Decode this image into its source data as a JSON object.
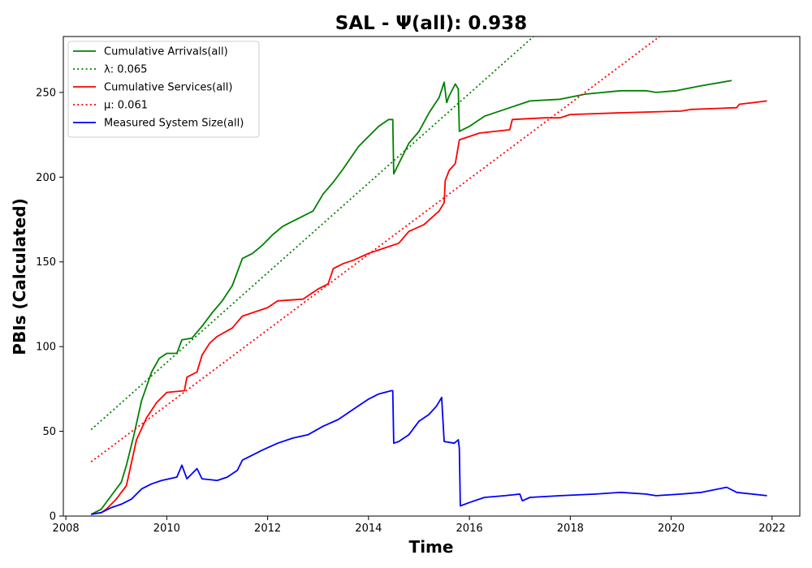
{
  "chart_data": {
    "type": "line",
    "title": "SAL -  Ψ(all): 0.938",
    "xlabel": "Time",
    "ylabel": "PBIs (Calculated)",
    "xlim": [
      2007.95,
      2022.55
    ],
    "ylim": [
      0,
      283
    ],
    "xticks": [
      2008,
      2010,
      2012,
      2014,
      2016,
      2018,
      2020,
      2022
    ],
    "yticks": [
      0,
      50,
      100,
      150,
      200,
      250
    ],
    "legend_position": "top-left",
    "series": [
      {
        "name": "Cumulative Arrivals(all)",
        "color": "#008000",
        "style": "solid",
        "points": [
          [
            2008.5,
            1
          ],
          [
            2008.7,
            4
          ],
          [
            2008.9,
            12
          ],
          [
            2009.1,
            20
          ],
          [
            2009.2,
            30
          ],
          [
            2009.35,
            48
          ],
          [
            2009.5,
            68
          ],
          [
            2009.7,
            85
          ],
          [
            2009.85,
            93
          ],
          [
            2010.0,
            96
          ],
          [
            2010.2,
            96
          ],
          [
            2010.3,
            104
          ],
          [
            2010.5,
            105
          ],
          [
            2010.7,
            112
          ],
          [
            2010.9,
            120
          ],
          [
            2011.1,
            127
          ],
          [
            2011.3,
            136
          ],
          [
            2011.5,
            152
          ],
          [
            2011.7,
            155
          ],
          [
            2011.9,
            160
          ],
          [
            2012.1,
            166
          ],
          [
            2012.3,
            171
          ],
          [
            2012.5,
            174
          ],
          [
            2012.9,
            180
          ],
          [
            2013.1,
            190
          ],
          [
            2013.3,
            197
          ],
          [
            2013.5,
            205
          ],
          [
            2013.8,
            218
          ],
          [
            2014.0,
            224
          ],
          [
            2014.2,
            230
          ],
          [
            2014.4,
            234
          ],
          [
            2014.48,
            234
          ],
          [
            2014.5,
            202
          ],
          [
            2014.6,
            208
          ],
          [
            2014.8,
            220
          ],
          [
            2015.0,
            227
          ],
          [
            2015.2,
            238
          ],
          [
            2015.4,
            247
          ],
          [
            2015.5,
            256
          ],
          [
            2015.55,
            244
          ],
          [
            2015.6,
            248
          ],
          [
            2015.72,
            255
          ],
          [
            2015.78,
            252
          ],
          [
            2015.8,
            227
          ],
          [
            2016.0,
            230
          ],
          [
            2016.3,
            236
          ],
          [
            2016.7,
            240
          ],
          [
            2017.2,
            245
          ],
          [
            2017.8,
            246
          ],
          [
            2018.3,
            249
          ],
          [
            2019.0,
            251
          ],
          [
            2019.5,
            251
          ],
          [
            2019.7,
            250
          ],
          [
            2020.1,
            251
          ],
          [
            2020.6,
            254
          ],
          [
            2021.2,
            257
          ]
        ]
      },
      {
        "name": "λ: 0.065",
        "color": "#008000",
        "style": "dotted",
        "points": [
          [
            2008.5,
            51
          ],
          [
            2017.27,
            283
          ]
        ]
      },
      {
        "name": "Cumulative Services(all)",
        "color": "#ff0000",
        "style": "solid",
        "points": [
          [
            2008.5,
            1
          ],
          [
            2008.7,
            2
          ],
          [
            2008.8,
            4
          ],
          [
            2009.0,
            10
          ],
          [
            2009.2,
            18
          ],
          [
            2009.4,
            45
          ],
          [
            2009.6,
            58
          ],
          [
            2009.8,
            67
          ],
          [
            2010.0,
            73
          ],
          [
            2010.35,
            74
          ],
          [
            2010.4,
            82
          ],
          [
            2010.6,
            85
          ],
          [
            2010.7,
            95
          ],
          [
            2010.85,
            102
          ],
          [
            2011.0,
            106
          ],
          [
            2011.3,
            111
          ],
          [
            2011.5,
            118
          ],
          [
            2012.0,
            123
          ],
          [
            2012.2,
            127
          ],
          [
            2012.7,
            128
          ],
          [
            2013.0,
            134
          ],
          [
            2013.2,
            137
          ],
          [
            2013.3,
            146
          ],
          [
            2013.5,
            149
          ],
          [
            2013.7,
            151
          ],
          [
            2014.0,
            155
          ],
          [
            2014.3,
            158
          ],
          [
            2014.6,
            161
          ],
          [
            2014.8,
            168
          ],
          [
            2015.1,
            172
          ],
          [
            2015.4,
            180
          ],
          [
            2015.5,
            185
          ],
          [
            2015.52,
            198
          ],
          [
            2015.6,
            204
          ],
          [
            2015.72,
            208
          ],
          [
            2015.8,
            222
          ],
          [
            2016.2,
            226
          ],
          [
            2016.8,
            228
          ],
          [
            2016.85,
            234
          ],
          [
            2017.5,
            235
          ],
          [
            2017.8,
            235
          ],
          [
            2018.0,
            237
          ],
          [
            2019.0,
            238
          ],
          [
            2020.2,
            239
          ],
          [
            2020.4,
            240
          ],
          [
            2021.3,
            241
          ],
          [
            2021.35,
            243
          ],
          [
            2021.9,
            245
          ]
        ]
      },
      {
        "name": "μ: 0.061",
        "color": "#ff0000",
        "style": "dotted",
        "points": [
          [
            2008.5,
            32
          ],
          [
            2019.77,
            283
          ]
        ]
      },
      {
        "name": "Measured System Size(all)",
        "color": "#0000ff",
        "style": "solid",
        "points": [
          [
            2008.5,
            1
          ],
          [
            2008.7,
            2
          ],
          [
            2008.9,
            5
          ],
          [
            2009.1,
            7
          ],
          [
            2009.3,
            10
          ],
          [
            2009.4,
            13
          ],
          [
            2009.5,
            16
          ],
          [
            2009.7,
            19
          ],
          [
            2009.9,
            21
          ],
          [
            2010.2,
            23
          ],
          [
            2010.3,
            30
          ],
          [
            2010.4,
            22
          ],
          [
            2010.6,
            28
          ],
          [
            2010.7,
            22
          ],
          [
            2011.0,
            21
          ],
          [
            2011.2,
            23
          ],
          [
            2011.4,
            27
          ],
          [
            2011.5,
            33
          ],
          [
            2011.7,
            36
          ],
          [
            2011.9,
            39
          ],
          [
            2012.2,
            43
          ],
          [
            2012.5,
            46
          ],
          [
            2012.8,
            48
          ],
          [
            2013.1,
            53
          ],
          [
            2013.4,
            57
          ],
          [
            2013.7,
            63
          ],
          [
            2014.0,
            69
          ],
          [
            2014.2,
            72
          ],
          [
            2014.45,
            74
          ],
          [
            2014.48,
            74
          ],
          [
            2014.5,
            43
          ],
          [
            2014.6,
            44
          ],
          [
            2014.8,
            48
          ],
          [
            2015.0,
            56
          ],
          [
            2015.2,
            60
          ],
          [
            2015.35,
            65
          ],
          [
            2015.45,
            70
          ],
          [
            2015.5,
            44
          ],
          [
            2015.7,
            43
          ],
          [
            2015.78,
            45
          ],
          [
            2015.8,
            40
          ],
          [
            2015.82,
            6
          ],
          [
            2016.0,
            8
          ],
          [
            2016.3,
            11
          ],
          [
            2016.7,
            12
          ],
          [
            2017.0,
            13
          ],
          [
            2017.05,
            9
          ],
          [
            2017.2,
            11
          ],
          [
            2017.8,
            12
          ],
          [
            2018.5,
            13
          ],
          [
            2019.0,
            14
          ],
          [
            2019.5,
            13
          ],
          [
            2019.7,
            12
          ],
          [
            2020.2,
            13
          ],
          [
            2020.6,
            14
          ],
          [
            2021.1,
            17
          ],
          [
            2021.3,
            14
          ],
          [
            2021.9,
            12
          ]
        ]
      }
    ]
  }
}
